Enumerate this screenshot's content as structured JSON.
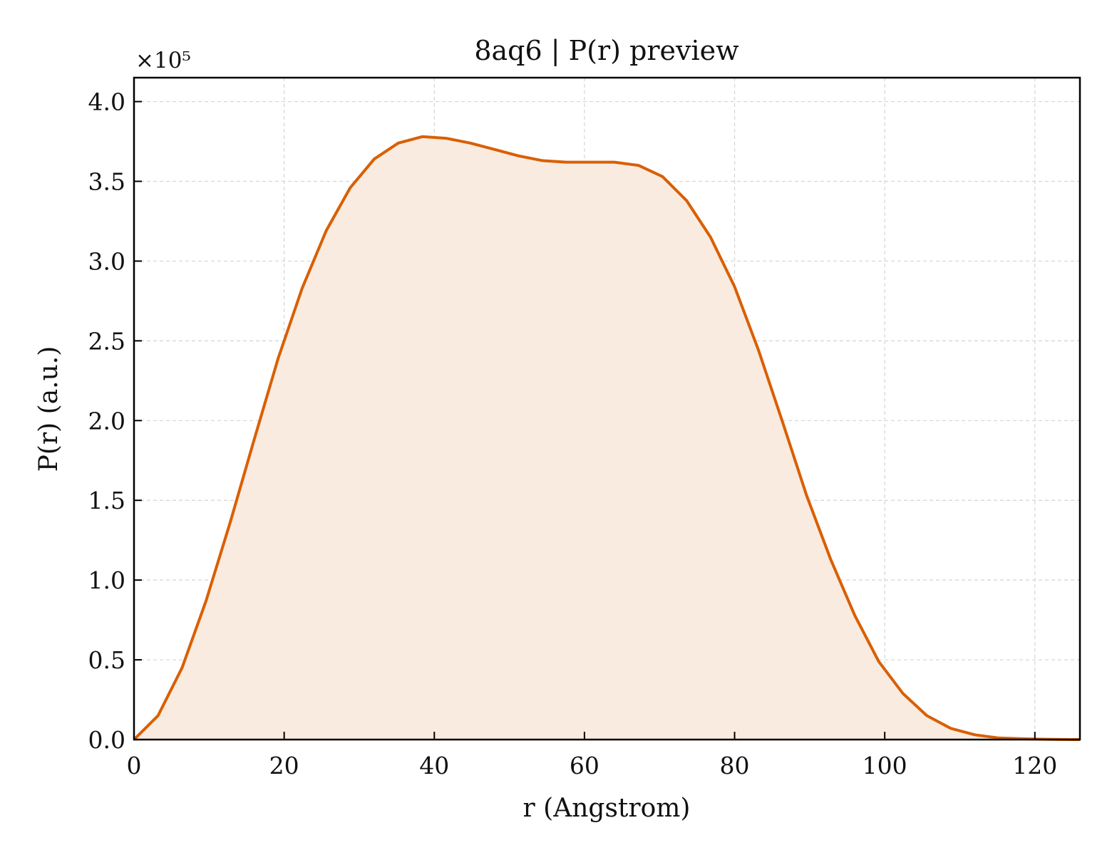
{
  "chart_data": {
    "type": "area",
    "title": "8aq6 | P(r) preview",
    "xlabel": "r (Angstrom)",
    "ylabel": "P(r) (a.u.)",
    "y_multiplier_label": "×10⁵",
    "xlim": [
      0,
      126
    ],
    "ylim": [
      0,
      4.15
    ],
    "xticks": [
      "0",
      "20",
      "40",
      "60",
      "80",
      "100",
      "120"
    ],
    "yticks": [
      "0.0",
      "0.5",
      "1.0",
      "1.5",
      "2.0",
      "2.5",
      "3.0",
      "3.5",
      "4.0"
    ],
    "grid": true,
    "line_color": "#d95f02",
    "fill_color": "#f9ebe0",
    "x": [
      0,
      3.2,
      6.4,
      9.6,
      12.8,
      16.0,
      19.2,
      22.4,
      25.6,
      28.8,
      32.0,
      35.2,
      38.4,
      41.6,
      44.8,
      48.0,
      51.2,
      54.4,
      57.6,
      60.8,
      64.0,
      67.2,
      70.4,
      73.6,
      76.8,
      80.0,
      83.2,
      86.4,
      89.6,
      92.8,
      96.0,
      99.2,
      102.4,
      105.6,
      108.8,
      112.0,
      115.2,
      118.4,
      121.6,
      124.8,
      126.0
    ],
    "y": [
      0.0,
      0.15,
      0.45,
      0.87,
      1.36,
      1.88,
      2.39,
      2.83,
      3.19,
      3.46,
      3.64,
      3.74,
      3.78,
      3.77,
      3.74,
      3.7,
      3.66,
      3.63,
      3.62,
      3.62,
      3.62,
      3.6,
      3.53,
      3.38,
      3.15,
      2.84,
      2.44,
      1.99,
      1.53,
      1.13,
      0.78,
      0.49,
      0.29,
      0.15,
      0.07,
      0.03,
      0.01,
      0.005,
      0.002,
      0.0,
      0.0
    ]
  }
}
